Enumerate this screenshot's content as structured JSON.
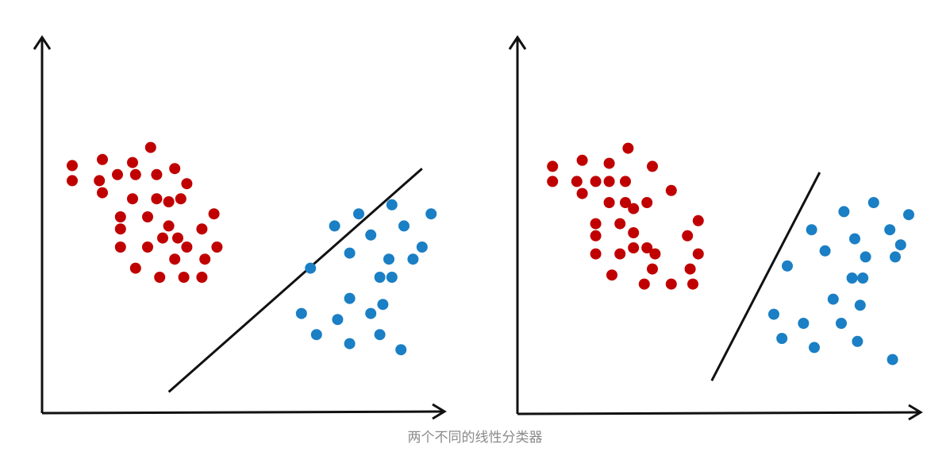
{
  "caption": "两个不同的线性分类器",
  "colors": {
    "class_a": "#c00000",
    "class_b": "#1a7fc4",
    "axis": "#111111",
    "boundary": "#111111",
    "caption": "#8a8a8a"
  },
  "panels": [
    {
      "name": "classifier-1",
      "class_a": [
        [
          1.0,
          8.2
        ],
        [
          2.0,
          8.4
        ],
        [
          3.0,
          8.3
        ],
        [
          3.6,
          8.8
        ],
        [
          4.4,
          8.1
        ],
        [
          1.0,
          7.7
        ],
        [
          1.9,
          7.7
        ],
        [
          2.5,
          7.9
        ],
        [
          3.1,
          7.9
        ],
        [
          3.8,
          7.9
        ],
        [
          4.8,
          7.6
        ],
        [
          2.0,
          7.3
        ],
        [
          3.0,
          7.1
        ],
        [
          3.8,
          7.1
        ],
        [
          4.2,
          7.0
        ],
        [
          4.6,
          7.1
        ],
        [
          2.6,
          6.5
        ],
        [
          3.5,
          6.5
        ],
        [
          5.7,
          6.6
        ],
        [
          2.6,
          6.1
        ],
        [
          4.2,
          6.2
        ],
        [
          5.3,
          6.1
        ],
        [
          2.6,
          5.5
        ],
        [
          3.5,
          5.5
        ],
        [
          4.0,
          5.8
        ],
        [
          4.5,
          5.8
        ],
        [
          4.8,
          5.5
        ],
        [
          5.8,
          5.5
        ],
        [
          3.1,
          4.8
        ],
        [
          4.4,
          5.1
        ],
        [
          5.4,
          5.1
        ],
        [
          3.9,
          4.5
        ],
        [
          4.7,
          4.5
        ],
        [
          5.3,
          4.5
        ]
      ],
      "class_b": [
        [
          10.5,
          6.6
        ],
        [
          11.6,
          6.9
        ],
        [
          12.9,
          6.6
        ],
        [
          9.7,
          6.2
        ],
        [
          10.9,
          5.9
        ],
        [
          12.0,
          6.2
        ],
        [
          12.6,
          5.5
        ],
        [
          10.2,
          5.3
        ],
        [
          11.5,
          5.1
        ],
        [
          12.3,
          5.1
        ],
        [
          8.9,
          4.8
        ],
        [
          11.2,
          4.5
        ],
        [
          11.6,
          4.5
        ],
        [
          10.2,
          3.8
        ],
        [
          11.3,
          3.6
        ],
        [
          8.6,
          3.3
        ],
        [
          9.8,
          3.1
        ],
        [
          10.9,
          3.3
        ],
        [
          9.1,
          2.6
        ],
        [
          10.2,
          2.3
        ],
        [
          11.2,
          2.6
        ],
        [
          11.9,
          2.1
        ]
      ],
      "boundary": [
        [
          4.2,
          0.7
        ],
        [
          12.6,
          8.1
        ]
      ]
    },
    {
      "name": "classifier-2",
      "class_a": [
        [
          1.3,
          8.2
        ],
        [
          2.4,
          8.4
        ],
        [
          3.4,
          8.3
        ],
        [
          4.1,
          8.8
        ],
        [
          5.0,
          8.2
        ],
        [
          1.3,
          7.7
        ],
        [
          2.2,
          7.7
        ],
        [
          2.9,
          7.7
        ],
        [
          3.4,
          7.7
        ],
        [
          4.0,
          7.7
        ],
        [
          5.7,
          7.4
        ],
        [
          2.4,
          7.3
        ],
        [
          3.4,
          7.0
        ],
        [
          4.0,
          7.0
        ],
        [
          4.3,
          6.8
        ],
        [
          4.8,
          7.0
        ],
        [
          2.9,
          6.3
        ],
        [
          3.8,
          6.3
        ],
        [
          6.7,
          6.4
        ],
        [
          2.9,
          5.9
        ],
        [
          4.3,
          6.0
        ],
        [
          6.3,
          5.9
        ],
        [
          2.9,
          5.3
        ],
        [
          3.8,
          5.3
        ],
        [
          4.3,
          5.5
        ],
        [
          4.8,
          5.5
        ],
        [
          5.1,
          5.3
        ],
        [
          6.7,
          5.3
        ],
        [
          3.5,
          4.6
        ],
        [
          5.0,
          4.8
        ],
        [
          6.4,
          4.8
        ],
        [
          4.7,
          4.3
        ],
        [
          5.7,
          4.3
        ],
        [
          6.5,
          4.3
        ]
      ],
      "class_b": [
        [
          13.2,
          7.0
        ],
        [
          12.1,
          6.7
        ],
        [
          14.5,
          6.6
        ],
        [
          10.9,
          6.1
        ],
        [
          12.5,
          5.8
        ],
        [
          13.8,
          6.1
        ],
        [
          14.2,
          5.6
        ],
        [
          11.4,
          5.4
        ],
        [
          12.9,
          5.2
        ],
        [
          14.0,
          5.2
        ],
        [
          10.0,
          4.9
        ],
        [
          12.4,
          4.5
        ],
        [
          12.8,
          4.5
        ],
        [
          11.7,
          3.8
        ],
        [
          12.7,
          3.6
        ],
        [
          9.5,
          3.3
        ],
        [
          10.6,
          3.0
        ],
        [
          12.0,
          3.0
        ],
        [
          9.8,
          2.5
        ],
        [
          11.0,
          2.2
        ],
        [
          12.6,
          2.4
        ],
        [
          13.9,
          1.8
        ]
      ],
      "boundary": [
        [
          7.2,
          1.1
        ],
        [
          11.2,
          8.0
        ]
      ]
    }
  ]
}
